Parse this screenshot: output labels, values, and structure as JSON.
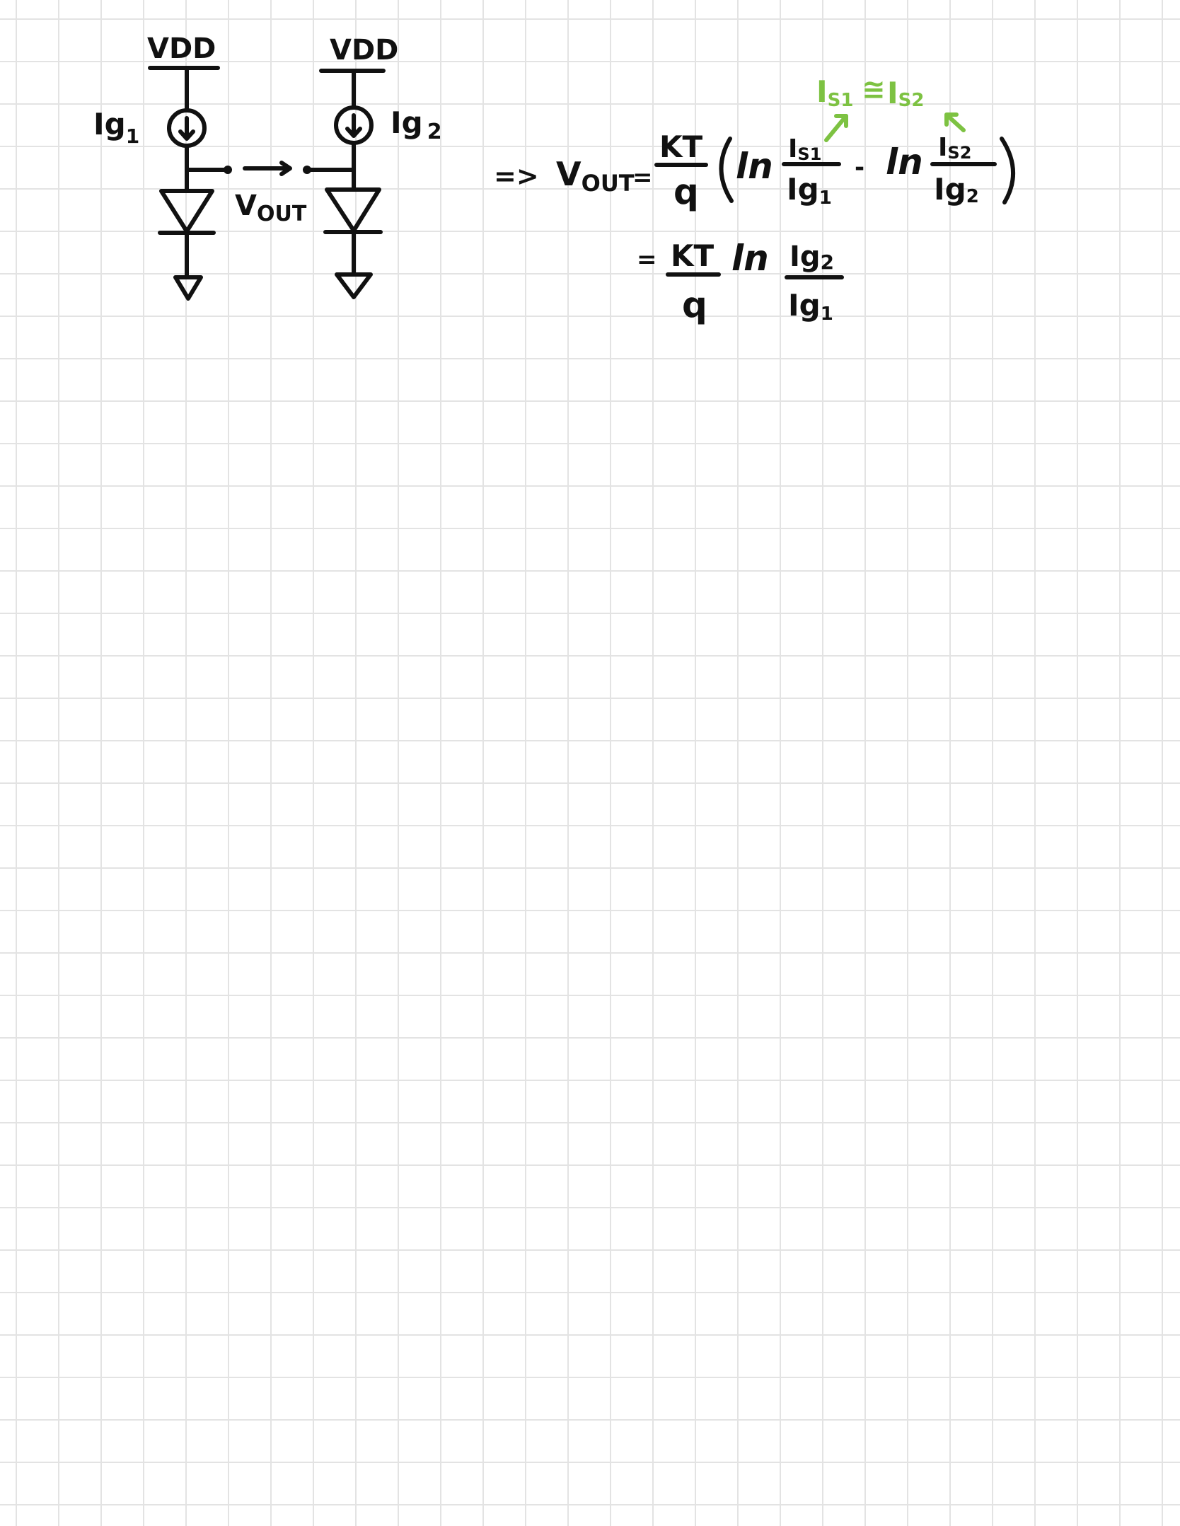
{
  "colors": {
    "ink": "#111111",
    "annotation": "#7dc242",
    "grid": "#e3e3e3",
    "paper": "#ffffff"
  },
  "circuit": {
    "left": {
      "supply": "VDD",
      "source": "Ig",
      "source_sub": "1"
    },
    "right": {
      "supply": "VDD",
      "source": "Ig",
      "source_sub": "2"
    },
    "output": {
      "main": "V",
      "sub": "OUT"
    }
  },
  "equation": {
    "implies": "=>",
    "lhs": {
      "main": "V",
      "sub": "OUT"
    },
    "eq": "=",
    "coef_num": "KT",
    "coef_den": "q",
    "ln": "ln",
    "minus": "-",
    "term1": {
      "num": "I",
      "num_sub": "S1",
      "den": "Ig",
      "den_sub": "1"
    },
    "term2": {
      "num": "I",
      "num_sub": "S2",
      "den": "Ig",
      "den_sub": "2"
    },
    "line2": {
      "eq": "=",
      "coef_num": "KT",
      "coef_den": "q",
      "ln": "ln",
      "num": "Ig",
      "num_sub": "2",
      "den": "Ig",
      "den_sub": "1"
    },
    "note": {
      "left": "I",
      "left_sub": "S1",
      "approx": "≅",
      "right": "I",
      "right_sub": "S2"
    }
  }
}
